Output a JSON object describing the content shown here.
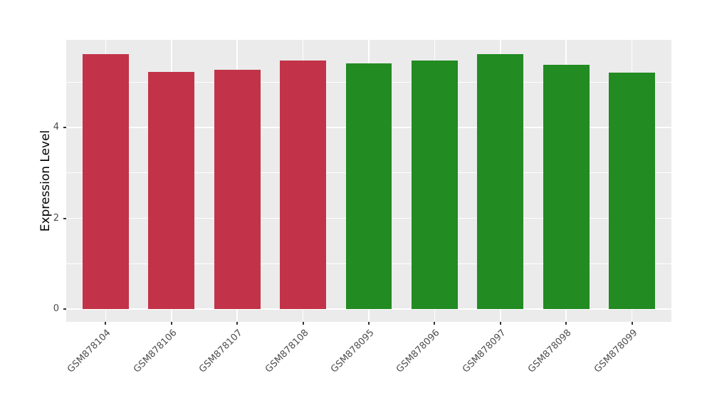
{
  "figure": {
    "background": "#FFFFFF",
    "panel_background": "#EBEBEB",
    "grid_color": "#FFFFFF",
    "axis_text_color": "#4D4D4D",
    "axis_title_color": "#000000",
    "tick_mark_color": "#333333"
  },
  "chart_data": {
    "type": "bar",
    "title": "",
    "xlabel": "",
    "ylabel": "Expression Level",
    "categories": [
      "GSM878104",
      "GSM878106",
      "GSM878107",
      "GSM878108",
      "GSM878095",
      "GSM878096",
      "GSM878097",
      "GSM878098",
      "GSM878099"
    ],
    "values": [
      5.61,
      5.22,
      5.27,
      5.47,
      5.41,
      5.47,
      5.62,
      5.38,
      5.21
    ],
    "bar_colors": [
      "#C23349",
      "#C23349",
      "#C23349",
      "#C23349",
      "#228B22",
      "#228B22",
      "#228B22",
      "#228B22",
      "#228B22"
    ],
    "color_groups": [
      {
        "color": "#C23349",
        "samples": [
          "GSM878104",
          "GSM878106",
          "GSM878107",
          "GSM878108"
        ]
      },
      {
        "color": "#228B22",
        "samples": [
          "GSM878095",
          "GSM878096",
          "GSM878097",
          "GSM878098",
          "GSM878099"
        ]
      }
    ],
    "yticks": [
      0,
      2,
      4
    ],
    "minor_gridlines": [
      1,
      3,
      5
    ],
    "ylim": [
      -0.28,
      5.93
    ],
    "x_label_rotation_deg": 45,
    "grid": "on",
    "legend_position": "none"
  }
}
